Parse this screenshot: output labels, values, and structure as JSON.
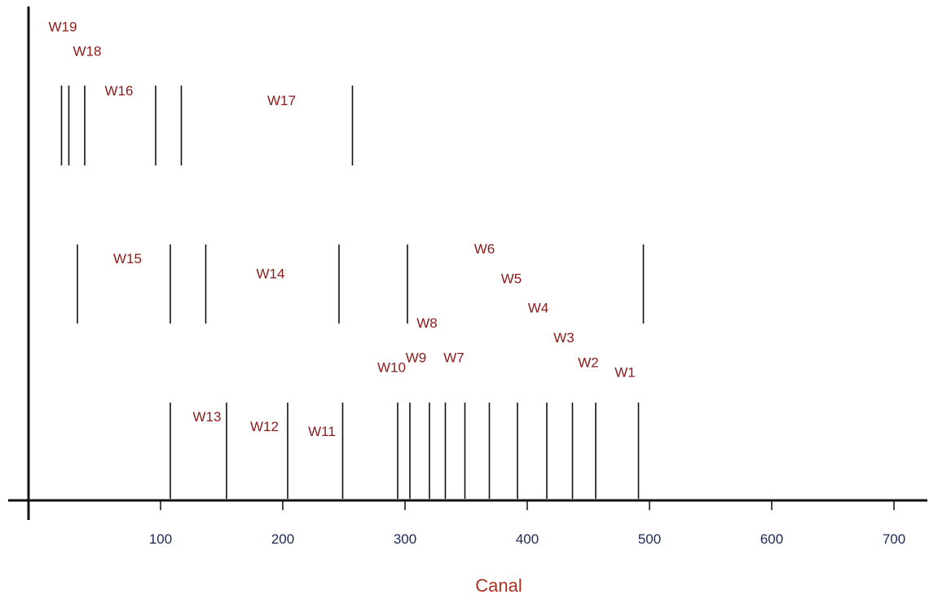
{
  "chart_data": {
    "type": "line",
    "title": "",
    "xlabel": "Canal",
    "ylabel": "",
    "xlim": [
      0,
      720
    ],
    "x_ticks": [
      100,
      200,
      300,
      400,
      500,
      600,
      700
    ],
    "grid": false,
    "legend": "none",
    "colors": {
      "marks": "#111111",
      "labels": "#8b1a1a",
      "xlabel": "#b03020",
      "ticks": "#1a2a5a"
    },
    "rows": [
      {
        "lines": [
          19,
          25,
          38,
          96,
          117,
          257
        ],
        "labels": [
          {
            "text": "W19",
            "x": 20,
            "level": 0.95
          },
          {
            "text": "W18",
            "x": 40,
            "level": 0.9
          },
          {
            "text": "W16",
            "x": 66,
            "level": 0.82
          },
          {
            "text": "W17",
            "x": 199,
            "level": 0.8
          }
        ]
      },
      {
        "lines": [
          32,
          108,
          137,
          246,
          302,
          495
        ],
        "labels": [
          {
            "text": "W15",
            "x": 73,
            "level": 0.48
          },
          {
            "text": "W14",
            "x": 190,
            "level": 0.45
          },
          {
            "text": "W6",
            "x": 365,
            "level": 0.5
          },
          {
            "text": "W5",
            "x": 387,
            "level": 0.44
          },
          {
            "text": "W4",
            "x": 409,
            "level": 0.38
          },
          {
            "text": "W3",
            "x": 430,
            "level": 0.32
          },
          {
            "text": "W2",
            "x": 450,
            "level": 0.27
          },
          {
            "text": "W1",
            "x": 480,
            "level": 0.25
          },
          {
            "text": "W8",
            "x": 318,
            "level": 0.35
          },
          {
            "text": "W9",
            "x": 309,
            "level": 0.28
          },
          {
            "text": "W7",
            "x": 340,
            "level": 0.28
          },
          {
            "text": "W10",
            "x": 289,
            "level": 0.26
          }
        ]
      },
      {
        "lines": [
          108,
          154,
          204,
          249,
          294,
          304,
          320,
          333,
          349,
          369,
          392,
          416,
          437,
          456,
          491
        ],
        "labels": [
          {
            "text": "W13",
            "x": 138,
            "level": 0.16
          },
          {
            "text": "W12",
            "x": 185,
            "level": 0.14
          },
          {
            "text": "W11",
            "x": 232,
            "level": 0.13
          }
        ]
      }
    ]
  }
}
